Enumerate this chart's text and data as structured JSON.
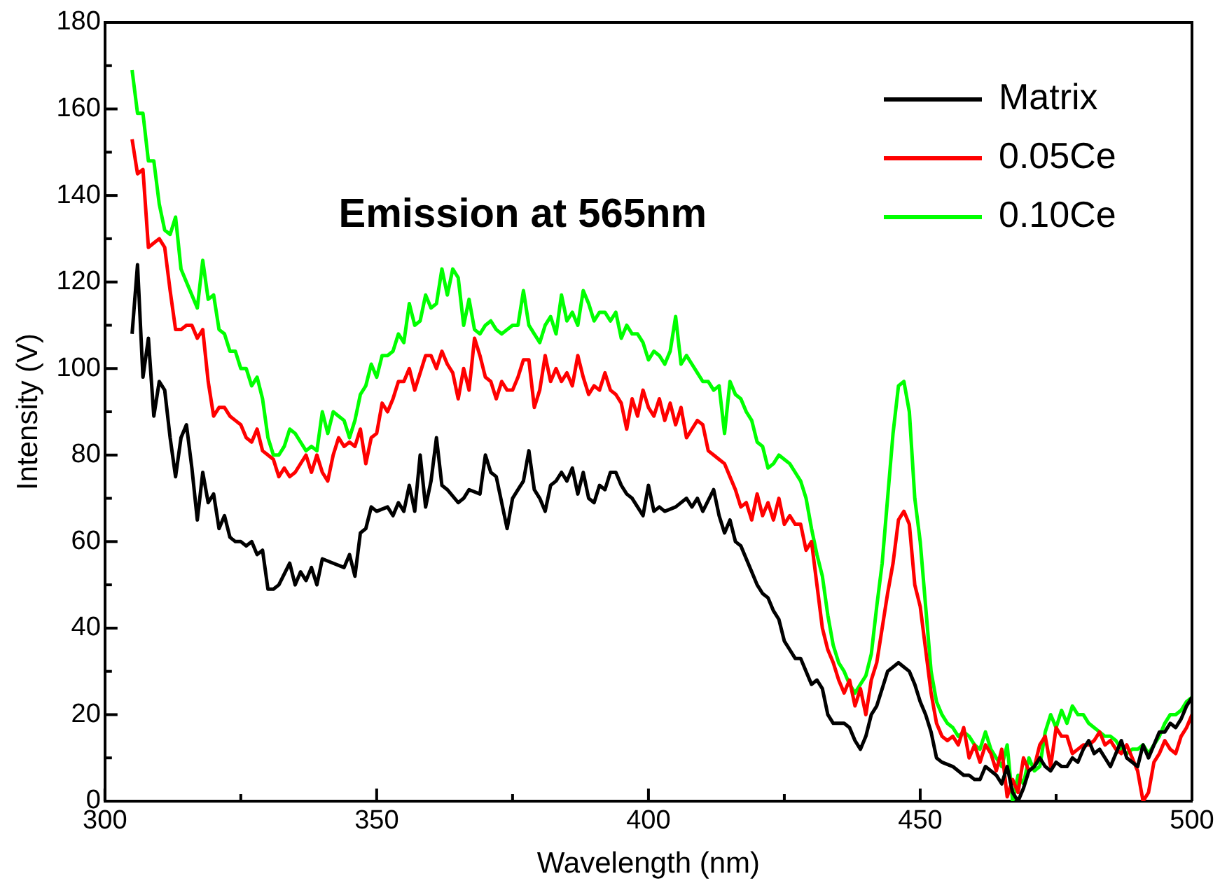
{
  "chart_data": {
    "type": "line",
    "title": "Emission at 565nm",
    "xlabel": "Wavelength (nm)",
    "ylabel": "Intensity (V)",
    "xlim": [
      300,
      500
    ],
    "xticks": [
      300,
      {
        "value": 325,
        "label": null
      },
      350,
      {
        "value": 375,
        "label": null
      },
      400,
      {
        "value": 425,
        "label": null
      },
      450,
      {
        "value": 475,
        "label": null
      },
      500
    ],
    "ylim": [
      0,
      180
    ],
    "yticks": [
      0,
      {
        "value": 10,
        "label": null
      },
      20,
      {
        "value": 30,
        "label": null
      },
      40,
      {
        "value": 50,
        "label": null
      },
      60,
      {
        "value": 70,
        "label": null
      },
      80,
      {
        "value": 90,
        "label": null
      },
      100,
      {
        "value": 110,
        "label": null
      },
      120,
      {
        "value": 130,
        "label": null
      },
      140,
      {
        "value": 150,
        "label": null
      },
      160,
      {
        "value": 170,
        "label": null
      },
      180
    ],
    "grid": false,
    "legend": "top right",
    "marker": "none",
    "line_style": "solid",
    "series": [
      {
        "name": "Matrix",
        "color": "#000000",
        "x": [
          305,
          306,
          307,
          308,
          309,
          310,
          311,
          312,
          313,
          314,
          315,
          316,
          317,
          318,
          319,
          320,
          321,
          322,
          323,
          324,
          325,
          326,
          327,
          328,
          329,
          330,
          331,
          332,
          334,
          335,
          336,
          337,
          338,
          339,
          340,
          342,
          344,
          345,
          346,
          347,
          348,
          349,
          350,
          352,
          353,
          354,
          355,
          356,
          357,
          358,
          359,
          360,
          361,
          362,
          363,
          365,
          366,
          367,
          369,
          370,
          371,
          372,
          374,
          375,
          376,
          377,
          378,
          379,
          380,
          381,
          382,
          383,
          384,
          385,
          386,
          387,
          388,
          389,
          390,
          391,
          392,
          393,
          394,
          395,
          396,
          397,
          398,
          399,
          400,
          401,
          402,
          403,
          405,
          407,
          408,
          409,
          410,
          412,
          413,
          414,
          415,
          416,
          417,
          418,
          419,
          420,
          421,
          422,
          423,
          424,
          425,
          426,
          427,
          428,
          429,
          430,
          431,
          432,
          433,
          434,
          436,
          437,
          438,
          439,
          440,
          441,
          442,
          443,
          444,
          446,
          447,
          448,
          449,
          450,
          451,
          452,
          453,
          454,
          456,
          457,
          458,
          459,
          460,
          461,
          462,
          463,
          464,
          465,
          466,
          467,
          468,
          469,
          470,
          471,
          472,
          473,
          474,
          475,
          476,
          477,
          478,
          479,
          480,
          481,
          482,
          483,
          484,
          485,
          486,
          487,
          488,
          490,
          491,
          492,
          493,
          494,
          495,
          496,
          497,
          498,
          499,
          500
        ],
        "values": [
          108,
          124,
          98,
          107,
          89,
          97,
          95,
          84,
          75,
          84,
          87,
          77,
          65,
          76,
          69,
          71,
          63,
          66,
          61,
          60,
          60,
          59,
          60,
          57,
          58,
          49,
          49,
          50,
          55,
          50,
          53,
          51,
          54,
          50,
          56,
          55,
          54,
          57,
          52,
          62,
          63,
          68,
          67,
          68,
          66,
          69,
          67,
          73,
          67,
          80,
          68,
          74,
          84,
          73,
          72,
          69,
          70,
          72,
          71,
          80,
          76,
          75,
          63,
          70,
          72,
          74,
          81,
          72,
          70,
          67,
          73,
          74,
          76,
          74,
          77,
          71,
          76,
          70,
          69,
          73,
          72,
          76,
          76,
          73,
          71,
          70,
          68,
          66,
          73,
          67,
          68,
          67,
          68,
          70,
          68,
          70,
          67,
          72,
          66,
          62,
          65,
          60,
          59,
          56,
          53,
          50,
          48,
          47,
          44,
          42,
          37,
          35,
          33,
          33,
          30,
          27,
          28,
          26,
          20,
          18,
          18,
          17,
          14,
          12,
          15,
          20,
          22,
          26,
          30,
          32,
          31,
          30,
          27,
          23,
          20,
          16,
          10,
          9,
          8,
          7,
          6,
          6,
          5,
          5,
          8,
          7,
          6,
          4,
          8,
          2,
          0,
          3,
          7,
          8,
          10,
          8,
          7,
          9,
          8,
          8,
          10,
          9,
          12,
          14,
          11,
          12,
          10,
          8,
          11,
          14,
          10,
          8,
          13,
          10,
          13,
          16,
          16,
          18,
          17,
          19,
          22,
          24
        ]
      },
      {
        "name": "0.05Ce",
        "color": "#ff0000",
        "x": [
          305,
          306,
          307,
          308,
          309,
          310,
          311,
          312,
          313,
          314,
          315,
          316,
          317,
          318,
          319,
          320,
          321,
          322,
          323,
          324,
          325,
          326,
          327,
          328,
          329,
          330,
          331,
          332,
          333,
          334,
          335,
          337,
          338,
          339,
          340,
          341,
          342,
          343,
          344,
          345,
          346,
          347,
          348,
          349,
          350,
          351,
          352,
          353,
          354,
          355,
          356,
          357,
          358,
          359,
          360,
          361,
          362,
          363,
          364,
          365,
          366,
          367,
          368,
          369,
          370,
          371,
          372,
          373,
          374,
          375,
          376,
          377,
          378,
          379,
          380,
          381,
          382,
          383,
          384,
          385,
          386,
          387,
          388,
          389,
          390,
          391,
          392,
          393,
          394,
          395,
          396,
          397,
          398,
          399,
          400,
          401,
          402,
          403,
          404,
          405,
          406,
          407,
          408,
          409,
          410,
          411,
          412,
          413,
          414,
          415,
          416,
          417,
          418,
          419,
          420,
          421,
          422,
          423,
          424,
          425,
          426,
          427,
          428,
          429,
          430,
          431,
          432,
          433,
          434,
          435,
          436,
          437,
          438,
          439,
          440,
          441,
          442,
          443,
          444,
          445,
          446,
          447,
          448,
          449,
          450,
          451,
          452,
          453,
          454,
          455,
          456,
          457,
          458,
          459,
          460,
          461,
          462,
          463,
          464,
          465,
          466,
          467,
          468,
          469,
          470,
          471,
          472,
          473,
          474,
          475,
          476,
          477,
          478,
          479,
          480,
          481,
          482,
          483,
          484,
          485,
          486,
          487,
          488,
          490,
          491,
          492,
          493,
          494,
          495,
          496,
          497,
          498,
          499,
          500
        ],
        "values": [
          153,
          145,
          146,
          128,
          129,
          130,
          128,
          118,
          109,
          109,
          110,
          110,
          107,
          109,
          97,
          89,
          91,
          91,
          89,
          88,
          87,
          84,
          83,
          86,
          81,
          80,
          79,
          75,
          77,
          75,
          76,
          80,
          76,
          80,
          76,
          74,
          80,
          84,
          82,
          83,
          82,
          86,
          78,
          84,
          85,
          92,
          90,
          93,
          97,
          97,
          100,
          95,
          99,
          103,
          103,
          100,
          104,
          101,
          99,
          93,
          100,
          95,
          107,
          103,
          98,
          97,
          93,
          97,
          95,
          95,
          98,
          102,
          102,
          91,
          95,
          103,
          97,
          100,
          97,
          99,
          96,
          103,
          98,
          94,
          96,
          95,
          99,
          95,
          94,
          92,
          86,
          93,
          89,
          95,
          91,
          89,
          93,
          88,
          92,
          87,
          91,
          84,
          86,
          88,
          87,
          81,
          80,
          79,
          78,
          75,
          72,
          68,
          69,
          65,
          71,
          66,
          69,
          65,
          70,
          64,
          66,
          64,
          64,
          58,
          60,
          50,
          40,
          35,
          32,
          28,
          25,
          28,
          22,
          26,
          20,
          28,
          32,
          40,
          48,
          55,
          65,
          67,
          64,
          50,
          45,
          35,
          25,
          18,
          15,
          14,
          15,
          13,
          17,
          10,
          13,
          9,
          13,
          11,
          7,
          12,
          1,
          5,
          2,
          10,
          7,
          8,
          13,
          15,
          8,
          17,
          15,
          15,
          11,
          12,
          13,
          13,
          14,
          16,
          13,
          14,
          12,
          11,
          13,
          7,
          0,
          2,
          9,
          11,
          14,
          12,
          11,
          15,
          17,
          20
        ]
      },
      {
        "name": "0.10Ce",
        "color": "#00ff00",
        "x": [
          305,
          306,
          307,
          308,
          309,
          310,
          311,
          312,
          313,
          314,
          315,
          316,
          317,
          318,
          319,
          320,
          321,
          322,
          323,
          324,
          325,
          326,
          327,
          328,
          329,
          330,
          331,
          332,
          333,
          334,
          335,
          336,
          337,
          338,
          339,
          340,
          341,
          342,
          343,
          344,
          345,
          346,
          347,
          348,
          349,
          350,
          351,
          352,
          353,
          354,
          355,
          356,
          357,
          358,
          359,
          360,
          361,
          362,
          363,
          364,
          365,
          366,
          367,
          368,
          369,
          370,
          371,
          372,
          373,
          374,
          375,
          376,
          377,
          378,
          379,
          380,
          381,
          382,
          383,
          384,
          385,
          386,
          387,
          388,
          389,
          390,
          391,
          392,
          393,
          394,
          395,
          396,
          397,
          398,
          399,
          400,
          401,
          402,
          403,
          404,
          405,
          406,
          407,
          408,
          409,
          410,
          411,
          412,
          413,
          414,
          415,
          416,
          417,
          418,
          419,
          420,
          421,
          422,
          423,
          424,
          425,
          426,
          427,
          428,
          429,
          430,
          431,
          432,
          433,
          434,
          435,
          436,
          437,
          438,
          439,
          440,
          441,
          442,
          443,
          444,
          445,
          446,
          447,
          448,
          449,
          450,
          451,
          452,
          453,
          454,
          455,
          456,
          457,
          458,
          459,
          460,
          461,
          462,
          463,
          464,
          465,
          466,
          467,
          468,
          469,
          470,
          471,
          472,
          473,
          474,
          475,
          476,
          477,
          478,
          479,
          480,
          481,
          482,
          483,
          484,
          485,
          486,
          487,
          488,
          489,
          490,
          491,
          492,
          493,
          494,
          495,
          496,
          497,
          498,
          499,
          500
        ],
        "values": [
          169,
          159,
          159,
          148,
          148,
          138,
          132,
          131,
          135,
          123,
          120,
          117,
          114,
          125,
          116,
          117,
          109,
          108,
          104,
          104,
          100,
          100,
          96,
          98,
          93,
          84,
          80,
          80,
          82,
          86,
          85,
          83,
          81,
          82,
          81,
          90,
          85,
          90,
          89,
          88,
          84,
          88,
          94,
          96,
          101,
          98,
          103,
          103,
          104,
          108,
          106,
          115,
          110,
          111,
          117,
          114,
          115,
          123,
          117,
          123,
          121,
          110,
          116,
          109,
          108,
          110,
          111,
          109,
          108,
          109,
          110,
          110,
          118,
          110,
          108,
          106,
          110,
          112,
          108,
          117,
          111,
          113,
          110,
          118,
          115,
          111,
          113,
          113,
          111,
          113,
          107,
          110,
          108,
          108,
          106,
          102,
          104,
          103,
          101,
          104,
          112,
          101,
          103,
          101,
          99,
          97,
          97,
          95,
          96,
          85,
          97,
          94,
          93,
          90,
          88,
          83,
          82,
          77,
          78,
          80,
          79,
          78,
          76,
          74,
          70,
          63,
          57,
          52,
          43,
          36,
          32,
          30,
          27,
          25,
          27,
          29,
          34,
          45,
          55,
          70,
          85,
          96,
          97,
          90,
          70,
          60,
          45,
          30,
          23,
          20,
          18,
          17,
          15,
          16,
          15,
          13,
          12,
          16,
          12,
          10,
          8,
          13,
          0,
          6,
          4,
          10,
          7,
          8,
          16,
          20,
          17,
          21,
          18,
          22,
          20,
          20,
          18,
          17,
          16,
          15,
          15,
          14,
          12,
          11,
          12,
          12,
          13,
          11,
          13,
          15,
          18,
          20,
          20,
          21,
          23,
          24
        ]
      }
    ]
  }
}
